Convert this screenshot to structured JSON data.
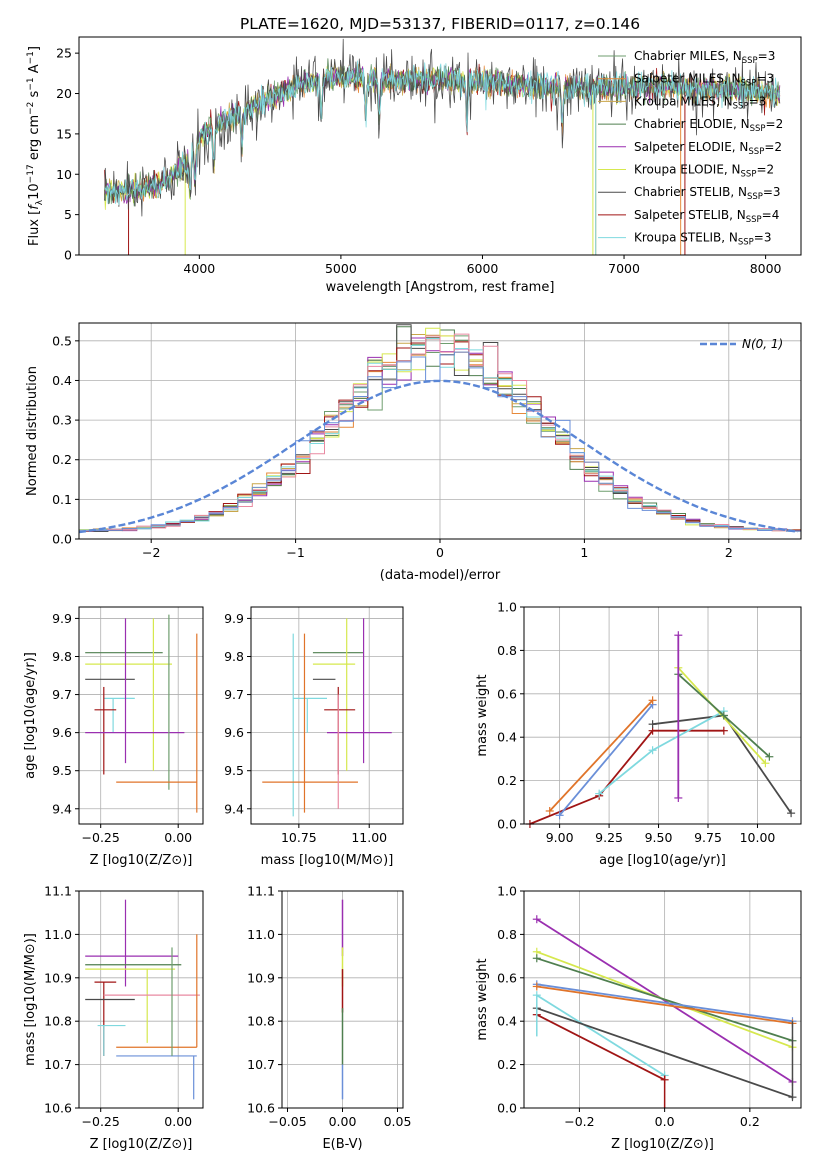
{
  "figure_title": "PLATE=1620, MJD=53137, FIBERID=0117, z=0.146",
  "colors": {
    "Chabrier MILES": "#6f9e6f",
    "Salpeter MILES": "#e6893a",
    "Kroupa MILES": "#c9a64a",
    "Chabrier ELODIE": "#4f7f4f",
    "Salpeter ELODIE": "#9a2fb0",
    "Kroupa ELODIE": "#d6e84e",
    "Chabrier STELIB": "#4a4a4a",
    "Salpeter STELIB": "#a01515",
    "Kroupa STELIB": "#7fd9df",
    "blue": "#6a8fd8",
    "orange": "#e0742a",
    "pink": "#e98aa2",
    "gauss": "#5a86d6"
  },
  "chart_data": [
    {
      "id": "spectrum",
      "type": "line",
      "title": "PLATE=1620, MJD=53137, FIBERID=0117, z=0.146",
      "xlabel": "wavelength [Angstrom, rest frame]",
      "ylabel": "Flux [f_λ 10^-17 erg cm^-2 s^-1 A^-1]",
      "xlim": [
        3150,
        8250
      ],
      "ylim": [
        0,
        27
      ],
      "xticks": [
        4000,
        5000,
        6000,
        7000,
        8000
      ],
      "yticks": [
        0,
        5,
        10,
        15,
        20,
        25
      ],
      "legend_position": "upper right",
      "legend": [
        {
          "name": "Chabrier MILES",
          "nssp": "3"
        },
        {
          "name": "Salpeter MILES",
          "nssp": "3"
        },
        {
          "name": "Kroupa MILES",
          "nssp": "3"
        },
        {
          "name": "Chabrier ELODIE",
          "nssp": "2"
        },
        {
          "name": "Salpeter ELODIE",
          "nssp": "2"
        },
        {
          "name": "Kroupa ELODIE",
          "nssp": "2"
        },
        {
          "name": "Chabrier STELIB",
          "nssp": "3"
        },
        {
          "name": "Salpeter STELIB",
          "nssp": "4"
        },
        {
          "name": "Kroupa STELIB",
          "nssp": "3"
        }
      ],
      "continuum": {
        "x": [
          3300,
          3500,
          3700,
          3900,
          4000,
          4100,
          4300,
          4500,
          4700,
          4900,
          5100,
          5300,
          5500,
          5700,
          5900,
          6100,
          6300,
          6500,
          6700,
          6900,
          7100,
          7300,
          7500,
          7700,
          7900,
          8100
        ],
        "y": [
          7.8,
          8.0,
          8.5,
          11.0,
          14.5,
          16.0,
          17.5,
          19.5,
          21.0,
          22.0,
          22.0,
          21.5,
          21.8,
          21.7,
          21.6,
          21.3,
          21.0,
          20.8,
          20.5,
          20.7,
          20.8,
          21.0,
          20.5,
          20.5,
          20.3,
          20.0
        ]
      }
    },
    {
      "id": "residuals",
      "type": "line",
      "xlabel": "(data-model)/error",
      "ylabel": "Normed distribution",
      "xlim": [
        -2.5,
        2.5
      ],
      "ylim": [
        0,
        0.545
      ],
      "xticks": [
        -2,
        -1,
        0,
        1,
        2
      ],
      "yticks": [
        0.0,
        0.1,
        0.2,
        0.3,
        0.4,
        0.5
      ],
      "legend_position": "upper right",
      "gauss_label": "N(0, 1)",
      "grid": true
    },
    {
      "id": "age_vs_Z",
      "type": "scatter",
      "xlabel": "Z [log10(Z/Z⊙)]",
      "ylabel": "age [log10(age/yr)]",
      "xlim": [
        -0.32,
        0.08
      ],
      "ylim": [
        9.36,
        9.93
      ],
      "xticks": [
        -0.25,
        0.0
      ],
      "yticks": [
        9.4,
        9.5,
        9.6,
        9.7,
        9.8,
        9.9
      ],
      "grid": true,
      "points": [
        {
          "c": "Chabrier ELODIE",
          "x": -0.05,
          "y": 9.81,
          "xe": [
            -0.3,
            -0.05
          ],
          "ye": [
            9.81,
            9.81
          ]
        },
        {
          "c": "Kroupa ELODIE",
          "x": -0.08,
          "y": 9.78,
          "xe": [
            -0.3,
            -0.02
          ],
          "ye": [
            9.5,
            9.9
          ]
        },
        {
          "c": "Chabrier STELIB",
          "x": -0.22,
          "y": 9.74,
          "xe": [
            -0.3,
            -0.14
          ],
          "ye": [
            9.74,
            9.74
          ]
        },
        {
          "c": "Kroupa STELIB",
          "x": -0.21,
          "y": 9.69,
          "xe": [
            -0.24,
            -0.14
          ],
          "ye": [
            9.6,
            9.69
          ]
        },
        {
          "c": "Salpeter STELIB",
          "x": -0.24,
          "y": 9.66,
          "xe": [
            -0.27,
            -0.2
          ],
          "ye": [
            9.49,
            9.72
          ]
        },
        {
          "c": "Salpeter ELODIE",
          "x": -0.17,
          "y": 9.6,
          "xe": [
            -0.3,
            0.02
          ],
          "ye": [
            9.52,
            9.9
          ]
        },
        {
          "c": "Chabrier MILES",
          "x": -0.03,
          "y": 9.7,
          "xe": [
            -0.03,
            -0.03
          ],
          "ye": [
            9.45,
            9.91
          ]
        },
        {
          "c": "orange",
          "x": 0.06,
          "y": 9.47,
          "xe": [
            -0.2,
            0.06
          ],
          "ye": [
            9.39,
            9.86
          ]
        }
      ]
    },
    {
      "id": "age_vs_mass",
      "type": "scatter",
      "xlabel": "mass [log10(M/M⊙)]",
      "ylabel": "",
      "xlim": [
        10.58,
        11.12
      ],
      "ylim": [
        9.36,
        9.93
      ],
      "xticks": [
        10.75,
        11.0
      ],
      "yticks": [
        9.4,
        9.5,
        9.6,
        9.7,
        9.8,
        9.9
      ],
      "grid": true,
      "points": [
        {
          "c": "Chabrier ELODIE",
          "x": 10.97,
          "y": 9.81,
          "xe": [
            10.8,
            10.98
          ],
          "ye": [
            9.81,
            9.81
          ]
        },
        {
          "c": "Kroupa ELODIE",
          "x": 10.92,
          "y": 9.78,
          "xe": [
            10.8,
            10.95
          ],
          "ye": [
            9.5,
            9.9
          ]
        },
        {
          "c": "Chabrier STELIB",
          "x": 10.85,
          "y": 9.74,
          "xe": [
            10.8,
            10.88
          ],
          "ye": [
            9.74,
            9.74
          ]
        },
        {
          "c": "Kroupa STELIB",
          "x": 10.78,
          "y": 9.69,
          "xe": [
            10.73,
            10.85
          ],
          "ye": [
            9.6,
            9.69
          ]
        },
        {
          "c": "Salpeter STELIB",
          "x": 10.89,
          "y": 9.66,
          "xe": [
            10.84,
            10.95
          ],
          "ye": [
            9.49,
            9.72
          ]
        },
        {
          "c": "Salpeter ELODIE",
          "x": 10.98,
          "y": 9.6,
          "xe": [
            10.85,
            11.08
          ],
          "ye": [
            9.52,
            9.9
          ]
        },
        {
          "c": "Kroupa STELIB",
          "x": 10.73,
          "y": 9.86,
          "xe": [
            10.73,
            10.73
          ],
          "ye": [
            9.38,
            9.86
          ]
        },
        {
          "c": "orange",
          "x": 10.77,
          "y": 9.47,
          "xe": [
            10.62,
            10.96
          ],
          "ye": [
            9.39,
            9.86
          ]
        },
        {
          "c": "pink",
          "x": 10.89,
          "y": 9.47,
          "xe": [
            10.89,
            10.89
          ],
          "ye": [
            9.4,
            9.7
          ]
        }
      ]
    },
    {
      "id": "mw_vs_age",
      "type": "line",
      "xlabel": "age [log10(age/yr)]",
      "ylabel": "mass weight",
      "xlim": [
        8.82,
        10.22
      ],
      "ylim": [
        0,
        1.0
      ],
      "xticks": [
        9.0,
        9.25,
        9.5,
        9.75,
        10.0
      ],
      "yticks": [
        0.0,
        0.2,
        0.4,
        0.6,
        0.8,
        1.0
      ],
      "grid": true,
      "series": [
        {
          "c": "Salpeter STELIB",
          "x": [
            8.85,
            9.2,
            9.47,
            9.83
          ],
          "y": [
            0.0,
            0.13,
            0.43,
            0.43
          ]
        },
        {
          "c": "Chabrier STELIB",
          "x": [
            9.47,
            9.83,
            10.17
          ],
          "y": [
            0.46,
            0.5,
            0.05
          ]
        },
        {
          "c": "Kroupa STELIB",
          "x": [
            9.2,
            9.47,
            9.83
          ],
          "y": [
            0.14,
            0.34,
            0.52
          ]
        },
        {
          "c": "blue",
          "x": [
            9.0,
            9.47
          ],
          "y": [
            0.04,
            0.55
          ]
        },
        {
          "c": "orange",
          "x": [
            8.95,
            9.47
          ],
          "y": [
            0.06,
            0.57
          ]
        },
        {
          "c": "Kroupa ELODIE",
          "x": [
            9.6,
            10.04
          ],
          "y": [
            0.72,
            0.28
          ]
        },
        {
          "c": "Chabrier ELODIE",
          "x": [
            9.6,
            9.83,
            10.06
          ],
          "y": [
            0.69,
            0.5,
            0.31
          ]
        },
        {
          "c": "Salpeter ELODIE",
          "x": [
            9.6,
            9.6
          ],
          "y": [
            0.12,
            0.87
          ]
        }
      ]
    },
    {
      "id": "mass_vs_Z",
      "type": "scatter",
      "xlabel": "Z [log10(Z/Z⊙)]",
      "ylabel": "mass [log10(M/M⊙)]",
      "xlim": [
        -0.32,
        0.08
      ],
      "ylim": [
        10.6,
        11.1
      ],
      "xticks": [
        -0.25,
        0.0
      ],
      "yticks": [
        10.6,
        10.7,
        10.8,
        10.9,
        11.0,
        11.1
      ],
      "grid": true,
      "points": [
        {
          "c": "Salpeter ELODIE",
          "x": -0.17,
          "y": 10.95,
          "xe": [
            -0.3,
            0.0
          ],
          "ye": [
            10.88,
            11.08
          ]
        },
        {
          "c": "Chabrier ELODIE",
          "x": -0.08,
          "y": 10.93,
          "xe": [
            -0.3,
            0.01
          ],
          "ye": [
            10.93,
            10.93
          ]
        },
        {
          "c": "Kroupa ELODIE",
          "x": -0.1,
          "y": 10.92,
          "xe": [
            -0.3,
            -0.01
          ],
          "ye": [
            10.75,
            10.92
          ]
        },
        {
          "c": "Salpeter STELIB",
          "x": -0.24,
          "y": 10.89,
          "xe": [
            -0.27,
            -0.2
          ],
          "ye": [
            10.72,
            10.89
          ]
        },
        {
          "c": "pink",
          "x": -0.1,
          "y": 10.86,
          "xe": [
            -0.24,
            0.07
          ],
          "ye": [
            10.86,
            10.86
          ]
        },
        {
          "c": "Chabrier STELIB",
          "x": -0.23,
          "y": 10.85,
          "xe": [
            -0.3,
            -0.14
          ],
          "ye": [
            10.85,
            10.85
          ]
        },
        {
          "c": "Kroupa STELIB",
          "x": -0.24,
          "y": 10.79,
          "xe": [
            -0.26,
            -0.17
          ],
          "ye": [
            10.72,
            10.79
          ]
        },
        {
          "c": "orange",
          "x": 0.06,
          "y": 10.74,
          "xe": [
            -0.2,
            0.06
          ],
          "ye": [
            10.74,
            11.0
          ]
        },
        {
          "c": "blue",
          "x": 0.05,
          "y": 10.72,
          "xe": [
            -0.2,
            0.06
          ],
          "ye": [
            10.62,
            10.72
          ]
        },
        {
          "c": "Chabrier MILES",
          "x": -0.02,
          "y": 10.82,
          "xe": [
            -0.02,
            -0.02
          ],
          "ye": [
            10.72,
            10.97
          ]
        }
      ]
    },
    {
      "id": "mass_vs_ebv",
      "type": "scatter",
      "xlabel": "E(B-V)",
      "ylabel": "",
      "xlim": [
        -0.055,
        0.055
      ],
      "ylim": [
        10.6,
        11.1
      ],
      "xticks": [
        -0.05,
        0.0,
        0.05
      ],
      "yticks": [
        10.6,
        10.7,
        10.8,
        10.9,
        11.0,
        11.1
      ],
      "grid": true,
      "bars": [
        {
          "c": "Salpeter ELODIE",
          "x": 0.0,
          "ye": [
            10.95,
            11.08
          ]
        },
        {
          "c": "Kroupa ELODIE",
          "x": 0.0,
          "ye": [
            10.88,
            10.97
          ]
        },
        {
          "c": "Salpeter STELIB",
          "x": 0.0,
          "ye": [
            10.82,
            10.92
          ]
        },
        {
          "c": "Chabrier ELODIE",
          "x": 0.0,
          "ye": [
            10.7,
            10.83
          ]
        },
        {
          "c": "blue",
          "x": 0.0,
          "ye": [
            10.62,
            10.7
          ]
        }
      ]
    },
    {
      "id": "mw_vs_Z",
      "type": "line",
      "xlabel": "Z [log10(Z/Z⊙)]",
      "ylabel": "mass weight",
      "xlim": [
        -0.33,
        0.32
      ],
      "ylim": [
        0,
        1.0
      ],
      "xticks": [
        -0.2,
        0.0,
        0.2
      ],
      "yticks": [
        0.0,
        0.2,
        0.4,
        0.6,
        0.8,
        1.0
      ],
      "grid": true,
      "series": [
        {
          "c": "Salpeter ELODIE",
          "x": [
            -0.3,
            0.3
          ],
          "y": [
            0.87,
            0.12
          ]
        },
        {
          "c": "Kroupa ELODIE",
          "x": [
            -0.3,
            0.3
          ],
          "y": [
            0.72,
            0.28
          ]
        },
        {
          "c": "Chabrier ELODIE",
          "x": [
            -0.3,
            0.3
          ],
          "y": [
            0.69,
            0.31
          ]
        },
        {
          "c": "blue",
          "x": [
            -0.3,
            0.3
          ],
          "y": [
            0.57,
            0.4
          ]
        },
        {
          "c": "orange",
          "x": [
            -0.3,
            0.3
          ],
          "y": [
            0.56,
            0.39
          ]
        },
        {
          "c": "Kroupa STELIB",
          "x": [
            -0.3,
            0.0
          ],
          "y": [
            0.52,
            0.15
          ]
        },
        {
          "c": "Chabrier STELIB",
          "x": [
            -0.3,
            0.3
          ],
          "y": [
            0.46,
            0.05
          ]
        },
        {
          "c": "Salpeter STELIB",
          "x": [
            -0.3,
            0.0
          ],
          "y": [
            0.43,
            0.13
          ]
        }
      ],
      "vbars": [
        {
          "c": "Kroupa STELIB",
          "x": -0.3,
          "ye": [
            0.33,
            0.52
          ]
        },
        {
          "c": "Salpeter STELIB",
          "x": 0.0,
          "ye": [
            0.0,
            0.15
          ]
        },
        {
          "c": "Chabrier STELIB",
          "x": 0.3,
          "ye": [
            0.04,
            0.4
          ]
        }
      ]
    }
  ]
}
